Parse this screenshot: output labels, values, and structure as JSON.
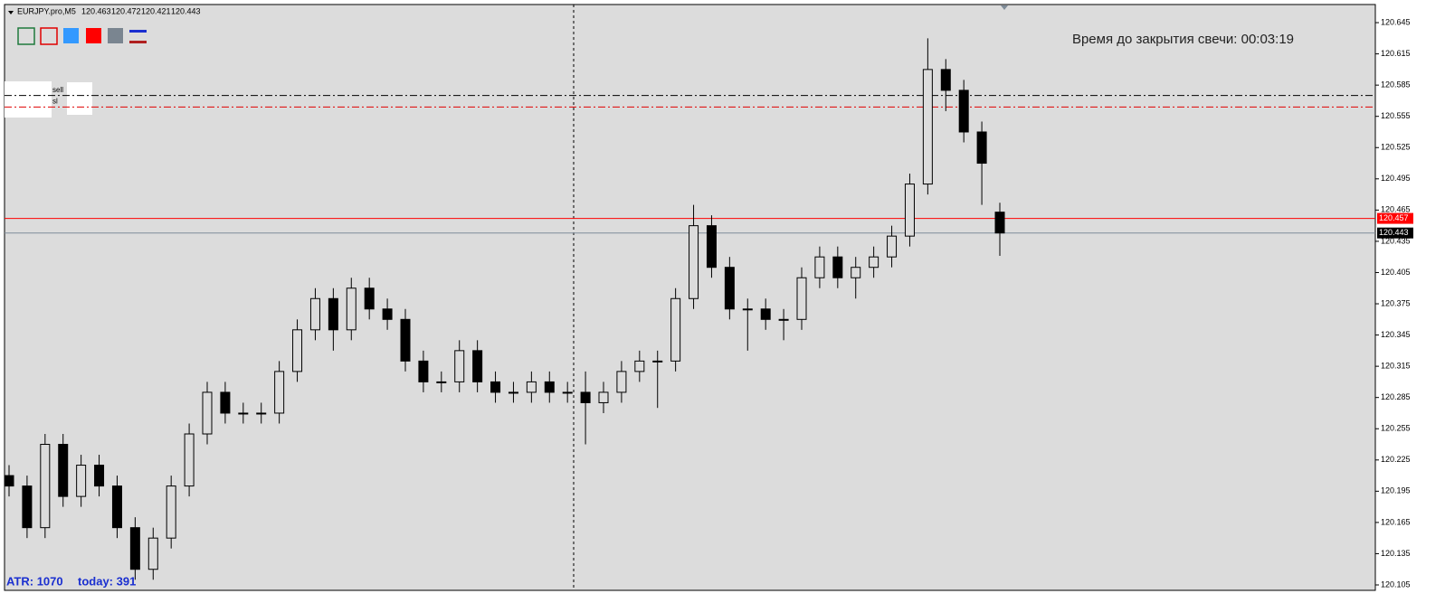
{
  "chart_data": {
    "type": "candlestick",
    "symbol": "EURJPY.pro,M5",
    "timer_label": "Время до закрытия свечи: 00:03:19",
    "atr_label": "ATR: 1070",
    "today_label": "today: 391",
    "categories": [
      null,
      null,
      null,
      null,
      null,
      null,
      null,
      null,
      null,
      null,
      null,
      null,
      null,
      null,
      null,
      null,
      null,
      null,
      null,
      null,
      null,
      null,
      null,
      null,
      null,
      null,
      null,
      null,
      null,
      null,
      null,
      null,
      null,
      null,
      null,
      null,
      null,
      null,
      null,
      null,
      null,
      null,
      null,
      null,
      null,
      null,
      null,
      null,
      null,
      null,
      null,
      null,
      null,
      null,
      null,
      null
    ],
    "open": [
      120.21,
      120.2,
      120.16,
      120.24,
      120.19,
      120.22,
      120.2,
      120.16,
      120.12,
      120.15,
      120.2,
      120.25,
      120.29,
      120.27,
      120.27,
      120.27,
      120.31,
      120.35,
      120.38,
      120.35,
      120.39,
      120.37,
      120.36,
      120.32,
      120.3,
      120.3,
      120.33,
      120.3,
      120.29,
      120.29,
      120.3,
      120.29,
      120.29,
      120.28,
      120.29,
      120.31,
      120.32,
      120.32,
      120.38,
      120.45,
      120.41,
      120.37,
      120.37,
      120.36,
      120.36,
      120.4,
      120.42,
      120.4,
      120.41,
      120.42,
      120.44,
      120.49,
      120.6,
      120.58,
      120.54,
      120.463
    ],
    "high": [
      120.22,
      120.21,
      120.25,
      120.25,
      120.23,
      120.23,
      120.21,
      120.17,
      120.16,
      120.21,
      120.26,
      120.3,
      120.3,
      120.28,
      120.28,
      120.32,
      120.36,
      120.39,
      120.39,
      120.4,
      120.4,
      120.38,
      120.37,
      120.33,
      120.31,
      120.34,
      120.34,
      120.31,
      120.3,
      120.31,
      120.31,
      120.3,
      120.31,
      120.3,
      120.32,
      120.33,
      120.33,
      120.39,
      120.47,
      120.46,
      120.42,
      120.38,
      120.38,
      120.37,
      120.41,
      120.43,
      120.43,
      120.42,
      120.43,
      120.45,
      120.5,
      120.63,
      120.61,
      120.59,
      120.55,
      120.472
    ],
    "low": [
      120.19,
      120.15,
      120.15,
      120.18,
      120.18,
      120.19,
      120.15,
      120.11,
      120.11,
      120.14,
      120.19,
      120.24,
      120.26,
      120.26,
      120.26,
      120.26,
      120.3,
      120.34,
      120.33,
      120.34,
      120.36,
      120.35,
      120.31,
      120.29,
      120.29,
      120.29,
      120.29,
      120.28,
      120.28,
      120.28,
      120.28,
      120.28,
      120.24,
      120.27,
      120.28,
      120.3,
      120.275,
      120.31,
      120.37,
      120.4,
      120.36,
      120.33,
      120.35,
      120.34,
      120.35,
      120.39,
      120.39,
      120.38,
      120.4,
      120.41,
      120.43,
      120.48,
      120.56,
      120.53,
      120.47,
      120.421
    ],
    "close": [
      120.2,
      120.16,
      120.24,
      120.19,
      120.22,
      120.2,
      120.16,
      120.12,
      120.15,
      120.2,
      120.25,
      120.29,
      120.27,
      120.27,
      120.27,
      120.31,
      120.35,
      120.38,
      120.35,
      120.39,
      120.37,
      120.36,
      120.32,
      120.3,
      120.3,
      120.33,
      120.3,
      120.29,
      120.29,
      120.3,
      120.29,
      120.29,
      120.28,
      120.29,
      120.31,
      120.32,
      120.32,
      120.38,
      120.45,
      120.41,
      120.37,
      120.37,
      120.36,
      120.36,
      120.4,
      120.42,
      120.4,
      120.41,
      120.42,
      120.44,
      120.49,
      120.6,
      120.58,
      120.54,
      120.51,
      120.443
    ],
    "ask_line": 120.457,
    "levels": [
      {
        "name": "sell",
        "value": 120.575,
        "color": "#000000"
      },
      {
        "name": "sl",
        "value": 120.564,
        "color": "#e00000"
      }
    ],
    "up_color": "#dcdcdc",
    "down_color": "#000000",
    "ylim": [
      120.0998,
      120.6624
    ],
    "yticks": [
      120.105,
      120.135,
      120.165,
      120.195,
      120.225,
      120.255,
      120.285,
      120.315,
      120.345,
      120.375,
      120.405,
      120.435,
      120.465,
      120.495,
      120.525,
      120.555,
      120.585,
      120.615,
      120.645
    ]
  }
}
